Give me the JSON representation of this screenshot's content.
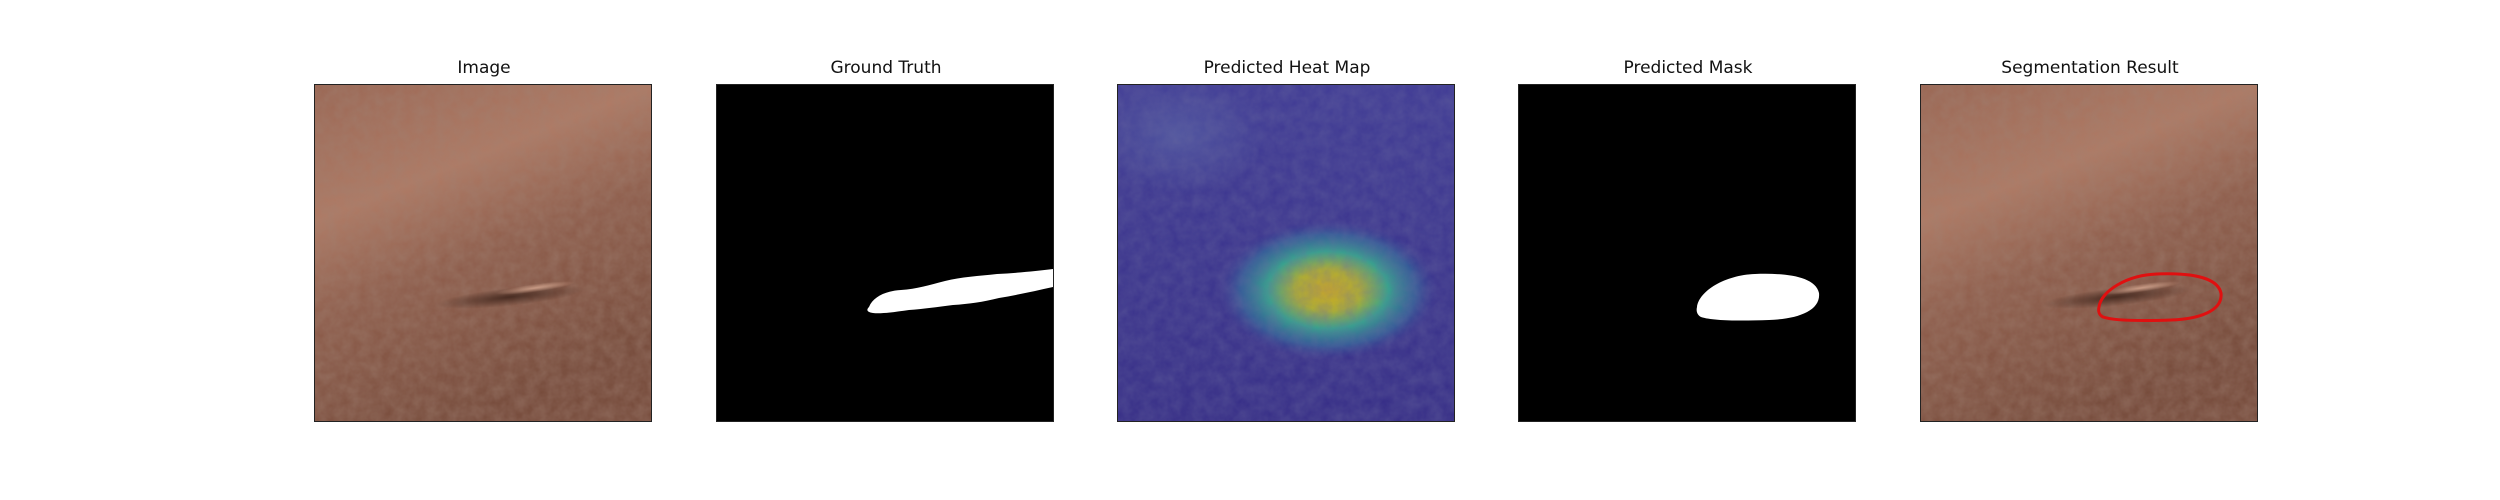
{
  "figure": {
    "panels": [
      {
        "title": "Image",
        "kind": "leather-photo"
      },
      {
        "title": "Ground Truth",
        "kind": "binary-mask"
      },
      {
        "title": "Predicted Heat Map",
        "kind": "heatmap-overlay"
      },
      {
        "title": "Predicted Mask",
        "kind": "binary-mask"
      },
      {
        "title": "Segmentation Result",
        "kind": "contour-overlay"
      }
    ],
    "colors": {
      "leather_base": "#8a5a48",
      "leather_light": "#b07a64",
      "heatmap_low": "#3b2f8f",
      "heatmap_mid": "#2aa08a",
      "heatmap_high": "#e0b81c",
      "contour": "#e01010",
      "mask_background": "#000000",
      "mask_foreground": "#ffffff"
    }
  }
}
